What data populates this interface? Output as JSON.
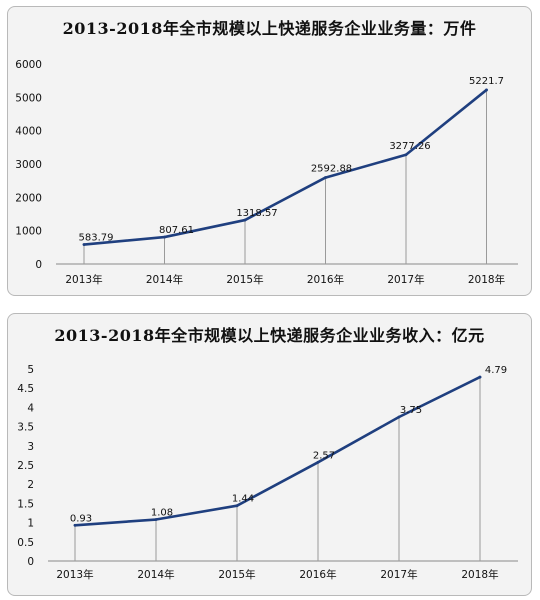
{
  "chart_data": [
    {
      "type": "line",
      "title": "2013-2018年全市规模以上快递服务企业业务量：万件",
      "categories": [
        "2013年",
        "2014年",
        "2015年",
        "2016年",
        "2017年",
        "2018年"
      ],
      "values": [
        583.79,
        807.61,
        1318.57,
        2592.88,
        3277.26,
        5221.7
      ],
      "value_labels": [
        "583.79",
        "807.61",
        "1318.57",
        "2592.88",
        "3277.26",
        "5221.7"
      ],
      "ylim": [
        0,
        6000
      ],
      "yticks": [
        "0",
        "1000",
        "2000",
        "3000",
        "4000",
        "5000",
        "6000"
      ],
      "xlabel": "",
      "ylabel": "",
      "grid": false,
      "drop_lines": true,
      "line_color": "#1f3f7f"
    },
    {
      "type": "line",
      "title": "2013-2018年全市规模以上快递服务企业业务收入：亿元",
      "categories": [
        "2013年",
        "2014年",
        "2015年",
        "2016年",
        "2017年",
        "2018年"
      ],
      "values": [
        0.93,
        1.08,
        1.44,
        2.57,
        3.75,
        4.79
      ],
      "value_labels": [
        "0.93",
        "1.08",
        "1.44",
        "2.57",
        "3.75",
        "4.79"
      ],
      "ylim": [
        0,
        5
      ],
      "yticks": [
        "0",
        "0.5",
        "1",
        "1.5",
        "2",
        "2.5",
        "3",
        "3.5",
        "4",
        "4.5",
        "5"
      ],
      "xlabel": "",
      "ylabel": "",
      "grid": false,
      "drop_lines": true,
      "line_color": "#1f3f7f"
    }
  ]
}
